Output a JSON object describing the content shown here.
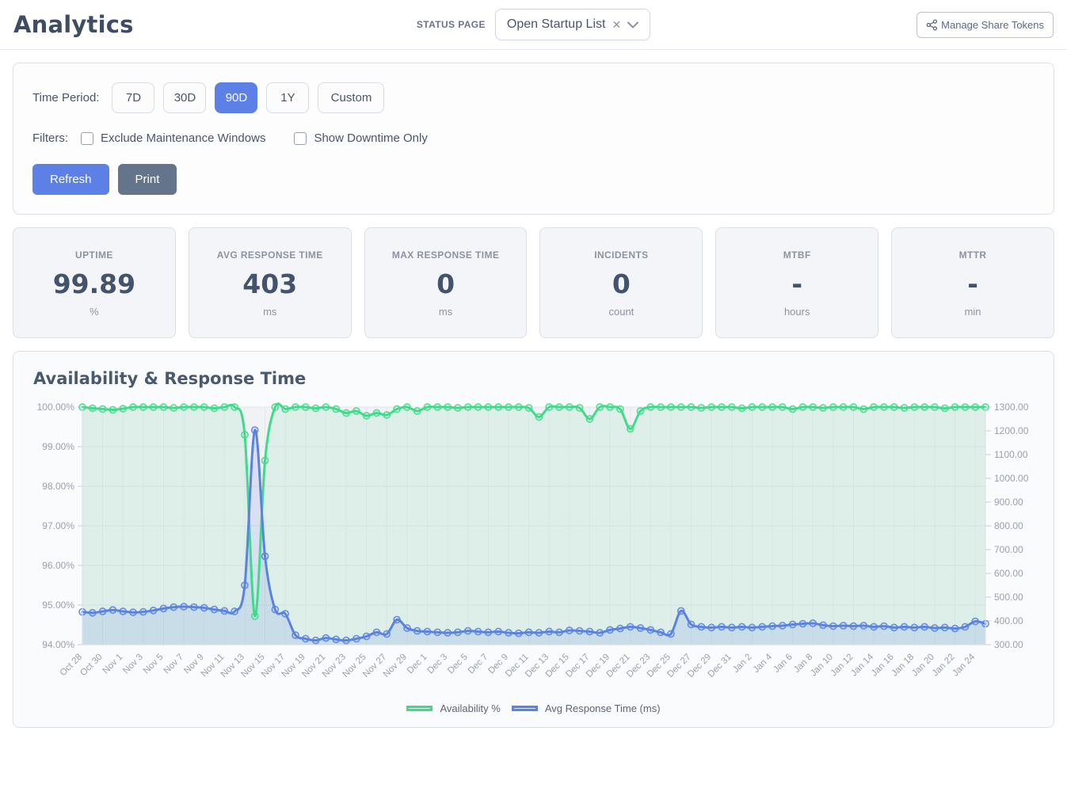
{
  "header": {
    "title": "Analytics",
    "status_page_label": "STATUS PAGE",
    "status_page_value": "Open Startup List",
    "manage_tokens_label": "Manage Share Tokens"
  },
  "filters": {
    "time_period_label": "Time Period:",
    "time_periods": [
      {
        "label": "7D"
      },
      {
        "label": "30D"
      },
      {
        "label": "90D"
      },
      {
        "label": "1Y"
      },
      {
        "label": "Custom"
      }
    ],
    "active_period": "90D",
    "filters_label": "Filters:",
    "exclude_maintenance_label": "Exclude Maintenance Windows",
    "show_downtime_label": "Show Downtime Only",
    "refresh_label": "Refresh",
    "print_label": "Print"
  },
  "stats": {
    "cards": [
      {
        "label": "UPTIME",
        "value": "99.89",
        "unit": "%"
      },
      {
        "label": "AVG RESPONSE TIME",
        "value": "403",
        "unit": "ms"
      },
      {
        "label": "MAX RESPONSE TIME",
        "value": "0",
        "unit": "ms"
      },
      {
        "label": "INCIDENTS",
        "value": "0",
        "unit": "count"
      },
      {
        "label": "MTBF",
        "value": "-",
        "unit": "hours"
      },
      {
        "label": "MTTR",
        "value": "-",
        "unit": "min"
      }
    ]
  },
  "chart": {
    "title": "Availability & Response Time",
    "chart_data": {
      "type": "line",
      "x_labels": [
        "Oct 28",
        "Oct 30",
        "Nov 1",
        "Nov 3",
        "Nov 5",
        "Nov 7",
        "Nov 9",
        "Nov 11",
        "Nov 13",
        "Nov 15",
        "Nov 17",
        "Nov 19",
        "Nov 21",
        "Nov 23",
        "Nov 25",
        "Nov 27",
        "Nov 29",
        "Dec 1",
        "Dec 3",
        "Dec 5",
        "Dec 7",
        "Dec 9",
        "Dec 11",
        "Dec 13",
        "Dec 15",
        "Dec 17",
        "Dec 19",
        "Dec 21",
        "Dec 23",
        "Dec 25",
        "Dec 27",
        "Dec 29",
        "Dec 31",
        "Jan 2",
        "Jan 4",
        "Jan 6",
        "Jan 8",
        "Jan 10",
        "Jan 12",
        "Jan 14",
        "Jan 16",
        "Jan 18",
        "Jan 20",
        "Jan 22",
        "Jan 24"
      ],
      "label_every": 2,
      "left_axis": {
        "min": 94,
        "max": 100,
        "tick_labels": [
          "100.00%",
          "99.00%",
          "98.00%",
          "97.00%",
          "96.00%",
          "95.00%",
          "94.00%"
        ]
      },
      "right_axis": {
        "min": 300,
        "max": 1300,
        "tick_labels": [
          "1300.00",
          "1200.00",
          "1100.00",
          "1000.00",
          "900.00",
          "800.00",
          "700.00",
          "600.00",
          "500.00",
          "400.00",
          "300.00"
        ]
      },
      "series": [
        {
          "name": "Availability %",
          "axis": "left",
          "color": "#41da8a",
          "fill": "rgba(65,218,138,0.10)",
          "swatch_fill": "#e9f6ef",
          "values": [
            100,
            99.97,
            99.95,
            99.93,
            99.96,
            100,
            100,
            100,
            100,
            99.98,
            100,
            100,
            100,
            99.97,
            100,
            100,
            99.3,
            94.72,
            98.65,
            100,
            99.95,
            100,
            100,
            99.97,
            100,
            99.95,
            99.85,
            99.9,
            99.78,
            99.85,
            99.8,
            99.95,
            100,
            99.9,
            100,
            100,
            100,
            99.98,
            100,
            100,
            100,
            100,
            100,
            100,
            99.98,
            99.75,
            100,
            100,
            100,
            99.98,
            99.7,
            100,
            100,
            99.95,
            99.45,
            99.9,
            100,
            100,
            100,
            100,
            100,
            99.98,
            100,
            100,
            100,
            99.97,
            100,
            100,
            100,
            100,
            99.95,
            100,
            100,
            99.98,
            100,
            100,
            100,
            99.95,
            100,
            100,
            100,
            99.98,
            100,
            100,
            100,
            99.97,
            100,
            100,
            100,
            100
          ]
        },
        {
          "name": "Avg Response Time (ms)",
          "axis": "right",
          "color": "#5b82e0",
          "fill": "rgba(91,130,224,0.16)",
          "swatch_fill": "#dde6f8",
          "values": [
            438,
            434,
            440,
            446,
            440,
            436,
            438,
            444,
            452,
            458,
            460,
            458,
            455,
            448,
            442,
            440,
            550,
            1203,
            672,
            448,
            430,
            340,
            325,
            318,
            328,
            322,
            318,
            325,
            335,
            352,
            345,
            405,
            370,
            358,
            355,
            352,
            350,
            352,
            358,
            355,
            352,
            355,
            350,
            348,
            352,
            350,
            355,
            352,
            360,
            358,
            355,
            350,
            362,
            368,
            375,
            370,
            362,
            352,
            345,
            442,
            385,
            375,
            372,
            375,
            372,
            375,
            372,
            375,
            378,
            380,
            385,
            388,
            390,
            382,
            378,
            380,
            378,
            380,
            375,
            378,
            372,
            375,
            372,
            375,
            370,
            372,
            368,
            375,
            398,
            388
          ]
        }
      ],
      "legend": [
        {
          "label": "Availability %"
        },
        {
          "label": "Avg Response Time (ms)"
        }
      ],
      "grid": true,
      "legend_position": "bottom"
    }
  },
  "colors": {
    "accent_blue": "#5c80e6",
    "secondary_slate": "#64748b",
    "green_line": "#41da8a",
    "blue_line": "#5b82e0",
    "plot_background": "#f0f2f5"
  }
}
